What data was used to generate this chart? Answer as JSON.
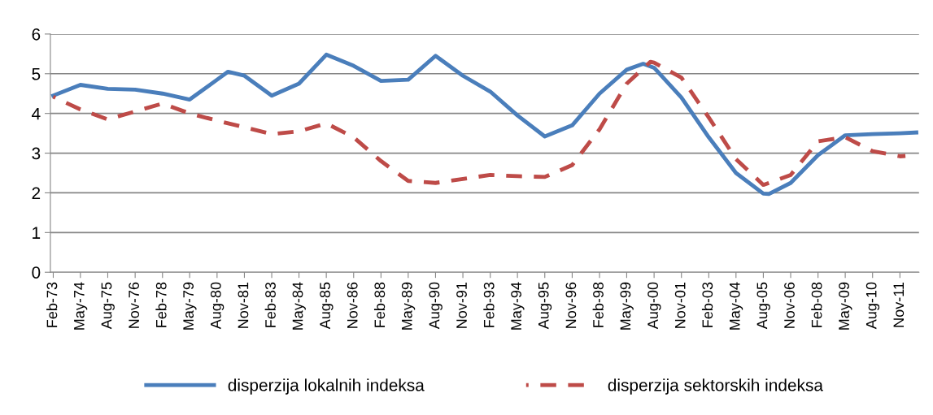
{
  "chart_data": {
    "type": "line",
    "xlim": [
      "1972-12-15",
      "2012-09-15"
    ],
    "xticks": [
      {
        "value": "1973-02",
        "label": "Feb-73"
      },
      {
        "value": "1974-05",
        "label": "May-74"
      },
      {
        "value": "1975-08",
        "label": "Aug-75"
      },
      {
        "value": "1976-11",
        "label": "Nov-76"
      },
      {
        "value": "1978-02",
        "label": "Feb-78"
      },
      {
        "value": "1979-05",
        "label": "May-79"
      },
      {
        "value": "1980-08",
        "label": "Aug-80"
      },
      {
        "value": "1981-11",
        "label": "Nov-81"
      },
      {
        "value": "1983-02",
        "label": "Feb-83"
      },
      {
        "value": "1984-05",
        "label": "May-84"
      },
      {
        "value": "1985-08",
        "label": "Aug-85"
      },
      {
        "value": "1986-11",
        "label": "Nov-86"
      },
      {
        "value": "1988-02",
        "label": "Feb-88"
      },
      {
        "value": "1989-05",
        "label": "May-89"
      },
      {
        "value": "1990-08",
        "label": "Aug-90"
      },
      {
        "value": "1991-11",
        "label": "Nov-91"
      },
      {
        "value": "1993-02",
        "label": "Feb-93"
      },
      {
        "value": "1994-05",
        "label": "May-94"
      },
      {
        "value": "1995-08",
        "label": "Aug-95"
      },
      {
        "value": "1996-11",
        "label": "Nov-96"
      },
      {
        "value": "1998-02",
        "label": "Feb-98"
      },
      {
        "value": "1999-05",
        "label": "May-99"
      },
      {
        "value": "2000-08",
        "label": "Aug-00"
      },
      {
        "value": "2001-11",
        "label": "Nov-01"
      },
      {
        "value": "2003-02",
        "label": "Feb-03"
      },
      {
        "value": "2004-05",
        "label": "May-04"
      },
      {
        "value": "2005-08",
        "label": "Aug-05"
      },
      {
        "value": "2006-11",
        "label": "Nov-06"
      },
      {
        "value": "2008-02",
        "label": "Feb-08"
      },
      {
        "value": "2009-05",
        "label": "May-09"
      },
      {
        "value": "2010-08",
        "label": "Aug-10"
      },
      {
        "value": "2011-11",
        "label": "Nov-11"
      }
    ],
    "ylim": [
      0,
      6
    ],
    "yticks": [
      0,
      1,
      2,
      3,
      4,
      5,
      6
    ],
    "grid": "y",
    "legend": "bottom",
    "series": [
      {
        "name": "disperzija lokalnih indeksa",
        "color": "#4a7ebb",
        "line_style": "solid",
        "x": [
          "1973-02",
          "1974-05",
          "1975-08",
          "1976-11",
          "1978-02",
          "1979-05",
          "1980-08",
          "1981-02",
          "1981-11",
          "1983-02",
          "1984-05",
          "1985-08",
          "1986-11",
          "1988-02",
          "1989-05",
          "1990-08",
          "1991-11",
          "1993-02",
          "1994-05",
          "1995-08",
          "1996-11",
          "1998-02",
          "1999-05",
          "2000-02",
          "2000-08",
          "2001-11",
          "2003-02",
          "2004-05",
          "2005-08",
          "2005-11",
          "2006-11",
          "2008-02",
          "2009-05",
          "2010-08",
          "2011-11",
          "2012-08"
        ],
        "values": [
          4.45,
          4.72,
          4.62,
          4.6,
          4.5,
          4.35,
          4.85,
          5.05,
          4.95,
          4.45,
          4.75,
          5.48,
          5.2,
          4.82,
          4.85,
          5.45,
          4.95,
          4.55,
          3.95,
          3.42,
          3.7,
          4.5,
          5.1,
          5.25,
          5.15,
          4.4,
          3.4,
          2.5,
          1.98,
          1.97,
          2.25,
          2.95,
          3.45,
          3.48,
          3.5,
          3.52
        ]
      },
      {
        "name": "disperzija sektorskih indeksa",
        "color": "#be4b48",
        "line_style": "dashed",
        "x": [
          "1973-02",
          "1974-05",
          "1975-08",
          "1976-11",
          "1978-02",
          "1979-05",
          "1980-08",
          "1981-11",
          "1983-02",
          "1984-05",
          "1985-08",
          "1986-11",
          "1988-02",
          "1989-05",
          "1990-08",
          "1991-11",
          "1993-02",
          "1994-05",
          "1995-08",
          "1996-11",
          "1998-02",
          "1999-05",
          "2000-06",
          "2000-08",
          "2001-11",
          "2003-02",
          "2004-05",
          "2005-08",
          "2006-11",
          "2008-02",
          "2009-05",
          "2010-08",
          "2011-11",
          "2012-02"
        ],
        "values": [
          4.42,
          4.1,
          3.85,
          4.05,
          4.25,
          4.0,
          3.82,
          3.65,
          3.48,
          3.55,
          3.75,
          3.4,
          2.8,
          2.3,
          2.25,
          2.35,
          2.45,
          2.42,
          2.4,
          2.7,
          3.6,
          4.75,
          5.3,
          5.28,
          4.9,
          3.9,
          2.85,
          2.2,
          2.45,
          3.3,
          3.4,
          3.05,
          2.92,
          2.93
        ]
      }
    ]
  }
}
